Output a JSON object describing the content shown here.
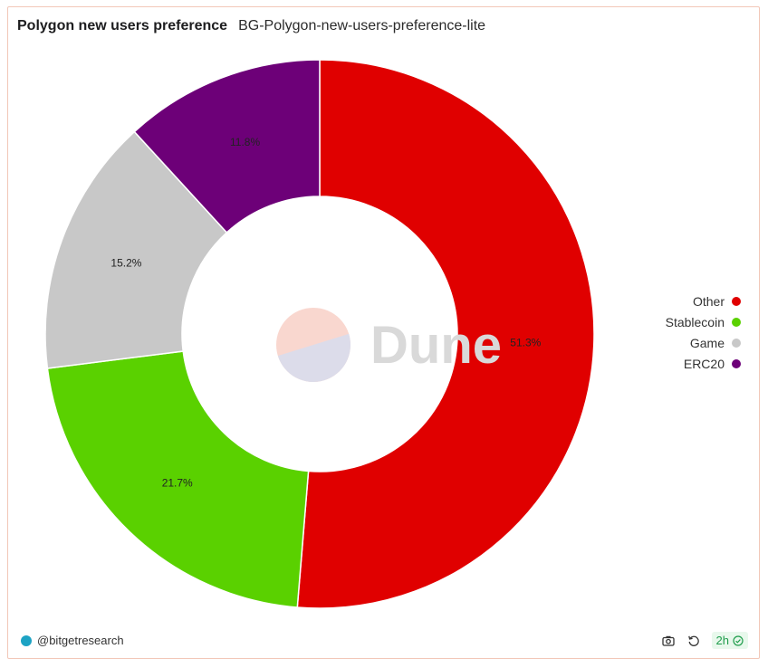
{
  "header": {
    "title": "Polygon new users preference",
    "subtitle": "BG-Polygon-new-users-preference-lite"
  },
  "watermark": {
    "text": "Dune"
  },
  "chart_data": {
    "type": "pie",
    "donut": true,
    "categories": [
      "Other",
      "Stablecoin",
      "Game",
      "ERC20"
    ],
    "values": [
      51.3,
      21.7,
      15.2,
      11.8
    ],
    "labels": [
      "51.3%",
      "21.7%",
      "15.2%",
      "11.8%"
    ],
    "colors": [
      "#e00000",
      "#5ad100",
      "#c8c8c8",
      "#6d0078"
    ],
    "legend_position": "right"
  },
  "legend": {
    "items": [
      {
        "label": "Other",
        "color": "#e00000"
      },
      {
        "label": "Stablecoin",
        "color": "#5ad100"
      },
      {
        "label": "Game",
        "color": "#c8c8c8"
      },
      {
        "label": "ERC20",
        "color": "#6d0078"
      }
    ]
  },
  "footer": {
    "author": "@bitgetresearch",
    "refresh_age": "2h",
    "icons": {
      "avatar": "avatar-icon",
      "screenshot": "camera-icon",
      "refresh": "refresh-icon",
      "status": "check-circle-icon"
    }
  }
}
